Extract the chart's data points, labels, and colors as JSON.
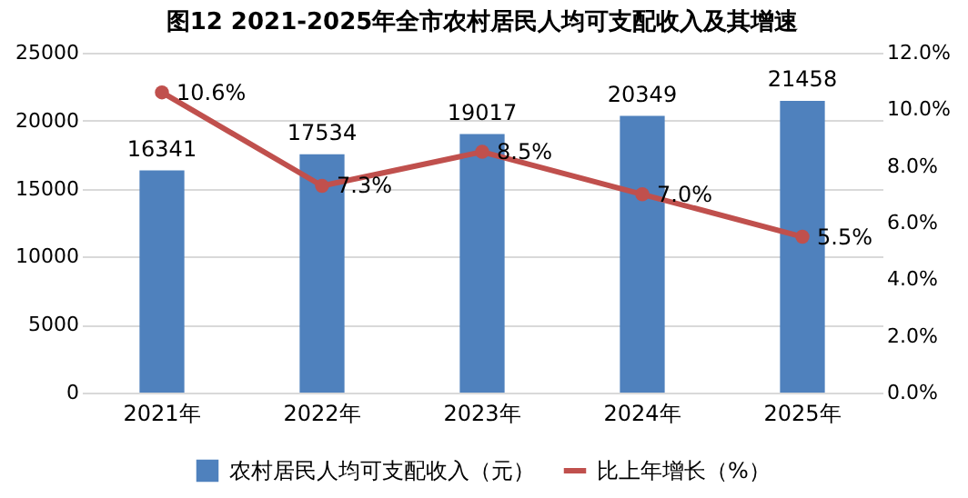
{
  "chart_data": {
    "type": "bar",
    "title": "图12 2021-2025年全市农村居民人均可支配收入及其增速",
    "categories": [
      "2021年",
      "2022年",
      "2023年",
      "2024年",
      "2025年"
    ],
    "series": [
      {
        "name": "农村居民人均可支配收入（元）",
        "color": "#4f81bd",
        "values": [
          16341,
          17534,
          19017,
          20349,
          21458
        ]
      },
      {
        "name": "比上年增长（%）",
        "type": "line",
        "axis": "y2",
        "color": "#c0504d",
        "marker": "circle",
        "values": [
          10.6,
          7.3,
          8.5,
          7.0,
          5.5
        ],
        "value_labels": [
          "10.6%",
          "7.3%",
          "8.5%",
          "7.0%",
          "5.5%"
        ]
      }
    ],
    "ylim": [
      0,
      25000
    ],
    "yticks": [
      0,
      5000,
      10000,
      15000,
      20000,
      25000
    ],
    "y2lim": [
      0,
      12
    ],
    "y2ticks": [
      {
        "value": 0,
        "label": "0.0%"
      },
      {
        "value": 2,
        "label": "2.0%"
      },
      {
        "value": 4,
        "label": "4.0%"
      },
      {
        "value": 6,
        "label": "6.0%"
      },
      {
        "value": 8,
        "label": "8.0%"
      },
      {
        "value": 10,
        "label": "10.0%"
      },
      {
        "value": 12,
        "label": "12.0%"
      }
    ],
    "data_labels": true,
    "grid": "y",
    "legend": "bottom"
  }
}
